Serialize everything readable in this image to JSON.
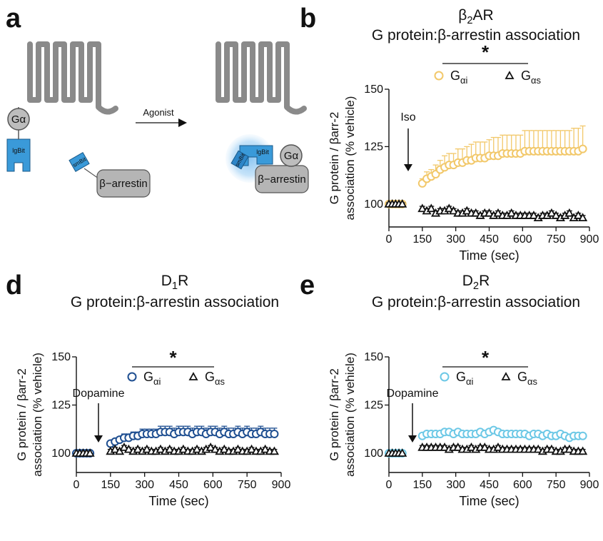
{
  "panels": [
    {
      "letter": "a"
    },
    {
      "letter": "b"
    },
    {
      "letter": "d"
    },
    {
      "letter": "e"
    }
  ],
  "diagram": {
    "g_alpha": "Gα",
    "lgbit": "lgBit",
    "smbit": "smBit",
    "arrestin": "β−arrestin",
    "agonist": "Agonist"
  },
  "colors": {
    "gai_yellow": "#f2c86a",
    "gai_navy": "#1f4f91",
    "gai_lightblue": "#6cc8e6",
    "gas": "#111111",
    "bit_blue": "#3a9ad9",
    "receptor_gray": "#8a8a8a"
  },
  "chart_data": [
    {
      "type": "scatter",
      "panel": "b",
      "title_receptor": "β",
      "title_sub": "2",
      "title_tail": "AR",
      "title_line2": "G protein:β-arrestin association",
      "ylabel_line1": "G protein / βarr-2",
      "ylabel_line2": "association (% vehicle)",
      "xlabel": "Time (sec)",
      "xlim": [
        0,
        900
      ],
      "ylim": [
        90,
        150
      ],
      "xticks": [
        0,
        150,
        300,
        450,
        600,
        750,
        900
      ],
      "yticks": [
        100,
        125,
        150
      ],
      "annotation": "Iso",
      "significance": "*",
      "legend_placement": "top",
      "series": [
        {
          "name": "G",
          "name_sub": "αi",
          "marker": "circle",
          "color": "#f2c86a",
          "x": [
            0,
            15,
            30,
            45,
            60,
            150,
            170,
            190,
            210,
            230,
            250,
            270,
            290,
            310,
            330,
            350,
            370,
            390,
            410,
            430,
            450,
            470,
            490,
            510,
            530,
            550,
            570,
            590,
            610,
            630,
            650,
            670,
            690,
            710,
            730,
            750,
            770,
            790,
            810,
            830,
            850,
            870
          ],
          "y": [
            100,
            100,
            100,
            100,
            100,
            109,
            111,
            112,
            113,
            115,
            116,
            117,
            117,
            118,
            118,
            119,
            119,
            120,
            120,
            120,
            121,
            121,
            121,
            122,
            122,
            122,
            122,
            122,
            123,
            123,
            123,
            123,
            123,
            123,
            123,
            123,
            123,
            123,
            123,
            123,
            123,
            124
          ],
          "err": [
            0.5,
            0.5,
            0.5,
            0.5,
            0.5,
            2,
            3,
            3,
            4,
            4,
            5,
            5,
            5,
            6,
            6,
            6,
            7,
            7,
            7,
            7,
            7,
            8,
            8,
            8,
            8,
            8,
            8,
            8,
            9,
            9,
            9,
            9,
            9,
            9,
            9,
            9,
            9,
            9,
            9,
            10,
            10,
            10
          ]
        },
        {
          "name": "G",
          "name_sub": "αs",
          "marker": "triangle",
          "color": "#111111",
          "x": [
            0,
            15,
            30,
            45,
            60,
            150,
            170,
            190,
            210,
            230,
            250,
            270,
            290,
            310,
            330,
            350,
            370,
            390,
            410,
            430,
            450,
            470,
            490,
            510,
            530,
            550,
            570,
            590,
            610,
            630,
            650,
            670,
            690,
            710,
            730,
            750,
            770,
            790,
            810,
            830,
            850,
            870
          ],
          "y": [
            100,
            100,
            100,
            100,
            100,
            98,
            97,
            98,
            96,
            97,
            97,
            98,
            97,
            96,
            96,
            97,
            96,
            96,
            95,
            96,
            96,
            95,
            96,
            95,
            95,
            96,
            95,
            95,
            95,
            95,
            95,
            94,
            95,
            95,
            96,
            95,
            94,
            95,
            96,
            94,
            95,
            94
          ],
          "err": [
            0.5,
            0.5,
            0.5,
            0.5,
            0.5,
            1,
            1,
            1,
            1,
            1,
            1,
            1,
            1,
            1,
            1,
            1,
            1,
            1,
            1,
            1,
            1,
            1,
            1,
            1,
            1,
            1,
            1,
            1,
            1,
            1,
            1,
            1,
            1,
            1,
            1,
            1,
            1,
            1,
            1,
            1,
            1,
            1
          ]
        }
      ]
    },
    {
      "type": "scatter",
      "panel": "d",
      "title_receptor": "D",
      "title_sub": "1",
      "title_tail": "R",
      "title_line2": "G protein:β-arrestin association",
      "ylabel_line1": "G protein / βarr-2",
      "ylabel_line2": "association (% vehicle)",
      "xlabel": "Time (sec)",
      "xlim": [
        0,
        900
      ],
      "ylim": [
        90,
        150
      ],
      "xticks": [
        0,
        150,
        300,
        450,
        600,
        750,
        900
      ],
      "yticks": [
        100,
        125,
        150
      ],
      "annotation": "Dopamine",
      "significance": "*",
      "legend_placement": "top",
      "series": [
        {
          "name": "G",
          "name_sub": "αi",
          "marker": "circle",
          "color": "#1f4f91",
          "x": [
            0,
            15,
            30,
            45,
            60,
            150,
            170,
            190,
            210,
            230,
            250,
            270,
            290,
            310,
            330,
            350,
            370,
            390,
            410,
            430,
            450,
            470,
            490,
            510,
            530,
            550,
            570,
            590,
            610,
            630,
            650,
            670,
            690,
            710,
            730,
            750,
            770,
            790,
            810,
            830,
            850,
            870
          ],
          "y": [
            100,
            100,
            100,
            100,
            100,
            105,
            106,
            107,
            108,
            108,
            109,
            109,
            110,
            110,
            110,
            110,
            111,
            111,
            111,
            110,
            111,
            111,
            111,
            110,
            111,
            111,
            110,
            111,
            111,
            110,
            111,
            110,
            110,
            111,
            110,
            111,
            110,
            110,
            111,
            110,
            110,
            110
          ],
          "err": [
            0.5,
            0.5,
            0.5,
            0.5,
            0.5,
            1,
            1,
            1.5,
            2,
            2,
            2,
            2,
            2.5,
            2.5,
            2.5,
            2.5,
            3,
            3,
            3,
            3,
            3,
            3,
            3,
            3,
            3,
            3,
            3,
            3,
            3,
            3,
            3,
            3,
            3,
            3,
            3,
            3,
            3,
            3,
            3,
            3,
            3,
            3
          ]
        },
        {
          "name": "G",
          "name_sub": "αs",
          "marker": "triangle",
          "color": "#111111",
          "x": [
            0,
            15,
            30,
            45,
            60,
            150,
            170,
            190,
            210,
            230,
            250,
            270,
            290,
            310,
            330,
            350,
            370,
            390,
            410,
            430,
            450,
            470,
            490,
            510,
            530,
            550,
            570,
            590,
            610,
            630,
            650,
            670,
            690,
            710,
            730,
            750,
            770,
            790,
            810,
            830,
            850,
            870
          ],
          "y": [
            100,
            100,
            100,
            100,
            100,
            101,
            102,
            101,
            103,
            102,
            101,
            102,
            101,
            102,
            101,
            101,
            102,
            101,
            102,
            101,
            101,
            102,
            101,
            101,
            102,
            101,
            102,
            103,
            102,
            101,
            102,
            101,
            101,
            102,
            101,
            101,
            102,
            101,
            101,
            102,
            101,
            101
          ],
          "err": [
            0.5,
            0.5,
            0.5,
            0.5,
            0.5,
            1,
            1,
            1,
            1,
            1,
            1,
            1,
            1,
            1,
            1,
            1,
            1,
            1,
            1,
            1,
            1,
            1,
            1,
            1,
            1,
            1,
            1,
            1,
            1,
            1,
            1,
            1,
            1,
            1,
            1,
            1,
            1,
            1,
            1,
            1,
            1,
            1
          ]
        }
      ]
    },
    {
      "type": "scatter",
      "panel": "e",
      "title_receptor": "D",
      "title_sub": "2",
      "title_tail": "R",
      "title_line2": "G protein:β-arrestin association",
      "ylabel_line1": "G protein / βarr-2",
      "ylabel_line2": "association (% vehicle)",
      "xlabel": "Time (sec)",
      "xlim": [
        0,
        900
      ],
      "ylim": [
        90,
        150
      ],
      "xticks": [
        0,
        150,
        300,
        450,
        600,
        750,
        900
      ],
      "yticks": [
        100,
        125,
        150
      ],
      "annotation": "Dopamine",
      "significance": "*",
      "legend_placement": "top",
      "series": [
        {
          "name": "G",
          "name_sub": "αi",
          "marker": "circle",
          "color": "#6cc8e6",
          "x": [
            0,
            15,
            30,
            45,
            60,
            150,
            170,
            190,
            210,
            230,
            250,
            270,
            290,
            310,
            330,
            350,
            370,
            390,
            410,
            430,
            450,
            470,
            490,
            510,
            530,
            550,
            570,
            590,
            610,
            630,
            650,
            670,
            690,
            710,
            730,
            750,
            770,
            790,
            810,
            830,
            850,
            870
          ],
          "y": [
            100,
            100,
            100,
            100,
            100,
            109,
            110,
            110,
            110,
            110,
            111,
            111,
            110,
            111,
            110,
            110,
            110,
            110,
            111,
            110,
            111,
            112,
            111,
            110,
            110,
            110,
            110,
            110,
            110,
            109,
            110,
            110,
            109,
            110,
            109,
            109,
            110,
            109,
            108,
            109,
            109,
            109
          ],
          "err": [
            0.5,
            0.5,
            0.5,
            0.5,
            0.5,
            1,
            1,
            1,
            1,
            1,
            1,
            1,
            1,
            1,
            1,
            1,
            1,
            1,
            1,
            1,
            1,
            1,
            1,
            1,
            1,
            1,
            1,
            1,
            1,
            1,
            1,
            1,
            1,
            1,
            1,
            1,
            1,
            1,
            1,
            1,
            1,
            1
          ]
        },
        {
          "name": "G",
          "name_sub": "αs",
          "marker": "triangle",
          "color": "#111111",
          "x": [
            0,
            15,
            30,
            45,
            60,
            150,
            170,
            190,
            210,
            230,
            250,
            270,
            290,
            310,
            330,
            350,
            370,
            390,
            410,
            430,
            450,
            470,
            490,
            510,
            530,
            550,
            570,
            590,
            610,
            630,
            650,
            670,
            690,
            710,
            730,
            750,
            770,
            790,
            810,
            830,
            850,
            870
          ],
          "y": [
            100,
            100,
            100,
            100,
            100,
            103,
            103,
            103,
            103,
            103,
            103,
            102,
            103,
            103,
            102,
            102,
            103,
            102,
            103,
            103,
            102,
            102,
            103,
            102,
            102,
            102,
            102,
            102,
            102,
            102,
            102,
            102,
            101,
            102,
            102,
            101,
            101,
            102,
            102,
            101,
            101,
            101
          ],
          "err": [
            0.5,
            0.5,
            0.5,
            0.5,
            0.5,
            1,
            1,
            1,
            1,
            1,
            1,
            1,
            1,
            1,
            1,
            1,
            1,
            1,
            1,
            1,
            1,
            1,
            1,
            1,
            1,
            1,
            1,
            1,
            1,
            1,
            1,
            1,
            1,
            1,
            1,
            1,
            1,
            1,
            1,
            1,
            1,
            1
          ]
        }
      ]
    }
  ]
}
